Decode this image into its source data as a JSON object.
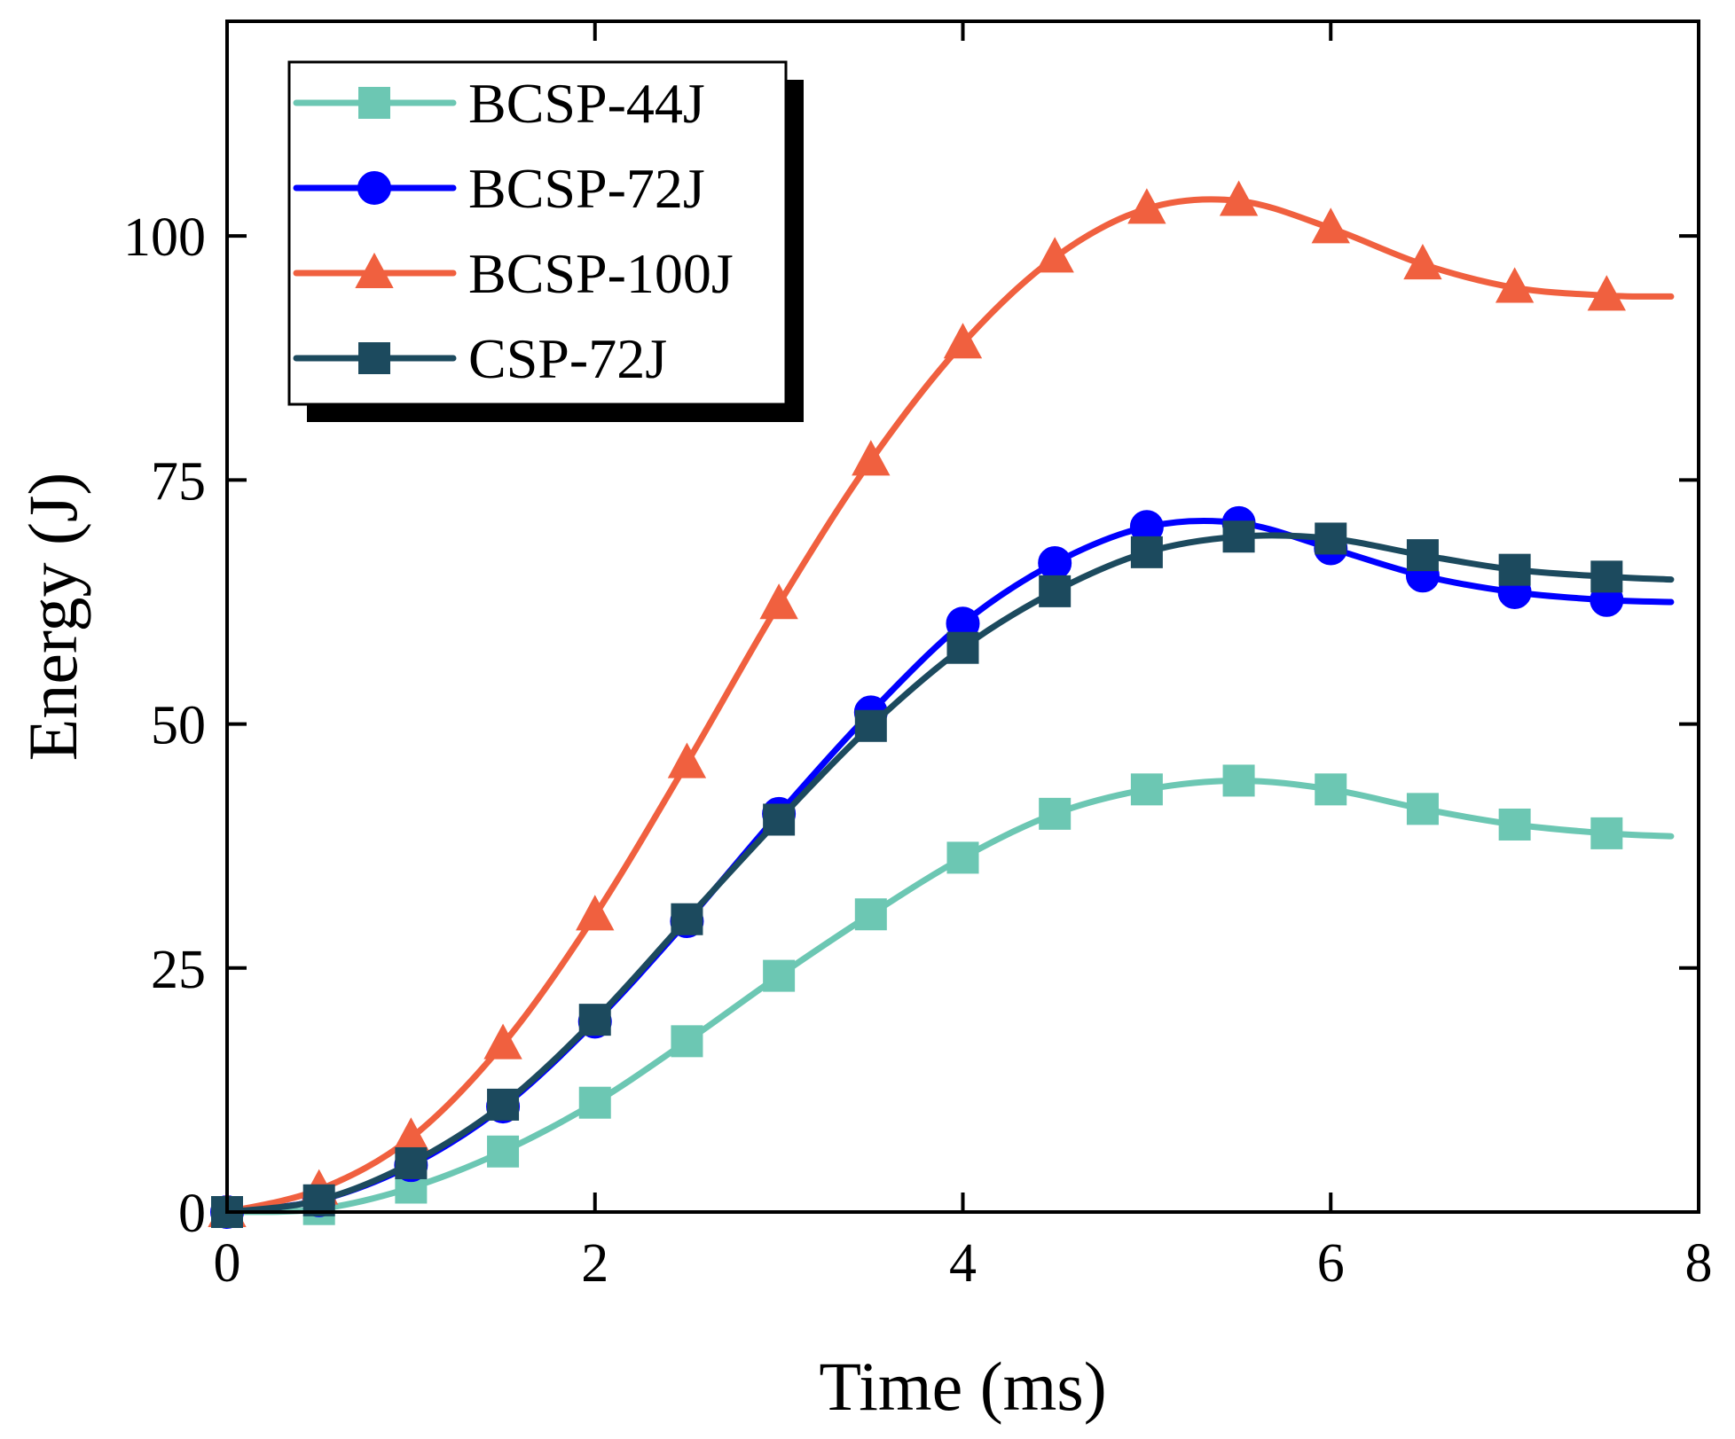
{
  "chart_data": {
    "type": "line",
    "title": "",
    "xlabel": "Time (ms)",
    "ylabel": "Energy (J)",
    "xlim": [
      0,
      8
    ],
    "ylim": [
      0,
      122
    ],
    "xticks": [
      0,
      2,
      4,
      6,
      8
    ],
    "yticks": [
      0,
      25,
      50,
      75,
      100
    ],
    "xtick_labels": [
      "0",
      "2",
      "4",
      "6",
      "8"
    ],
    "ytick_labels": [
      "0",
      "25",
      "50",
      "75",
      "100"
    ],
    "grid": false,
    "legend_position": "top-left",
    "x": [
      0,
      0.5,
      1,
      1.5,
      2,
      2.5,
      3,
      3.5,
      4,
      4.5,
      5,
      5.5,
      6,
      6.5,
      7,
      7.5
    ],
    "curve_end_x": 7.85,
    "series": [
      {
        "name": "BCSP-44J",
        "marker": "square",
        "color": "#6cc7b3",
        "values": [
          0,
          0.3,
          2.5,
          6.2,
          11.2,
          17.5,
          24.2,
          30.5,
          36.3,
          40.8,
          43.3,
          44.2,
          43.3,
          41.3,
          39.7,
          38.8
        ],
        "end_value": 38.5
      },
      {
        "name": "BCSP-72J",
        "marker": "circle",
        "color": "#0000ff",
        "values": [
          0,
          1.2,
          4.8,
          10.8,
          19.5,
          29.8,
          40.8,
          51.2,
          60.3,
          66.5,
          70.2,
          70.6,
          68.0,
          65.2,
          63.5,
          62.7
        ],
        "end_value": 62.5
      },
      {
        "name": "BCSP-100J",
        "marker": "triangle",
        "color": "#f0603f",
        "values": [
          0,
          2.3,
          7.6,
          17.2,
          30.4,
          46.0,
          62.3,
          77.0,
          89.0,
          97.8,
          102.8,
          103.6,
          100.8,
          97.1,
          94.7,
          93.9
        ],
        "end_value": 93.8
      },
      {
        "name": "CSP-72J",
        "marker": "square",
        "color": "#1c4a5e",
        "values": [
          0,
          1.2,
          5.0,
          11.0,
          19.7,
          30.0,
          40.2,
          49.8,
          57.8,
          63.6,
          67.6,
          69.2,
          69.0,
          67.3,
          65.8,
          65.1
        ],
        "end_value": 64.8
      }
    ]
  }
}
